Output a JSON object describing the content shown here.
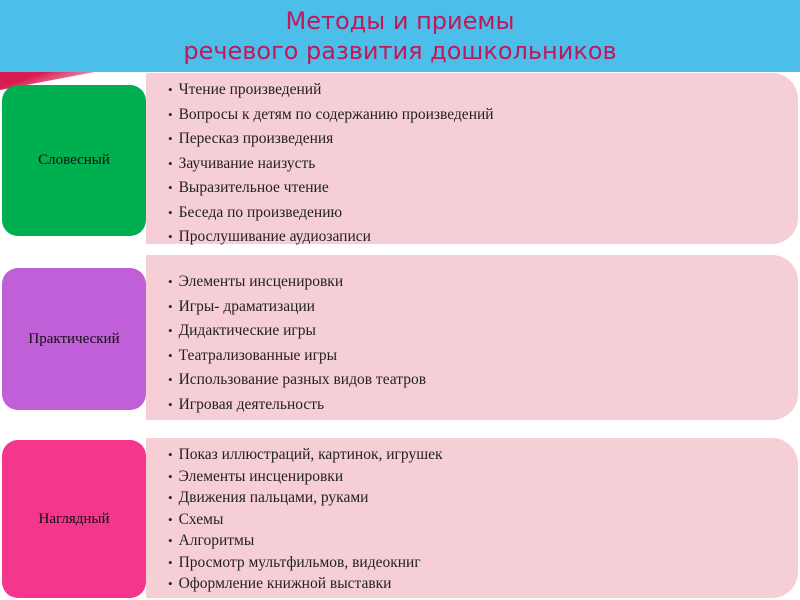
{
  "title": {
    "line1": "Методы и приемы",
    "line2": "речевого развития дошкольников"
  },
  "colors": {
    "header": "#4bbfea",
    "title_text": "#c0185a",
    "verbal": "#00b050",
    "practical": "#c15fd8",
    "visual": "#f4378d",
    "panel": "#f6cfd6"
  },
  "methods": [
    {
      "label": "Словесный",
      "items": [
        "Чтение произведений",
        "Вопросы к детям по содержанию произведений",
        "Пересказ произведения",
        "Заучивание наизусть",
        "Выразительное чтение",
        "Беседа по произведению",
        "Прослушивание аудиозаписи"
      ]
    },
    {
      "label": "Практический",
      "items": [
        "Элементы инсценировки",
        "Игры- драматизации",
        "Дидактические игры",
        "Театрализованные игры",
        "Использование разных видов театров",
        "Игровая деятельность"
      ]
    },
    {
      "label": "Наглядный",
      "items": [
        "Показ иллюстраций, картинок, игрушек",
        "Элементы инсценировки",
        "Движения пальцами, руками",
        "Схемы",
        "Алгоритмы",
        "Просмотр мультфильмов, видеокниг",
        "Оформление книжной выставки"
      ]
    }
  ]
}
